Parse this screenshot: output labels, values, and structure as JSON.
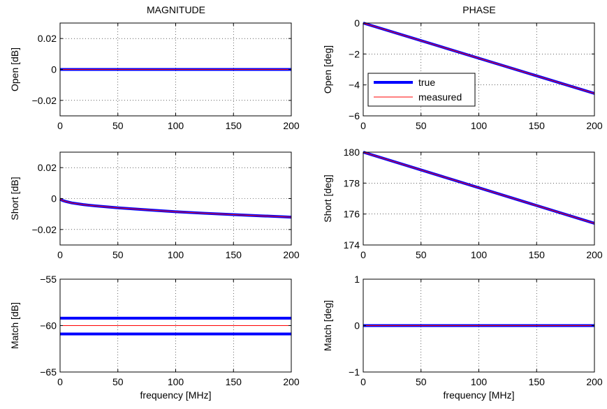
{
  "figure": {
    "col_titles": [
      "MAGNITUDE",
      "PHASE"
    ]
  },
  "chart_data": [
    {
      "type": "line",
      "ylabel": "Open [dB]",
      "xlim": [
        0,
        200
      ],
      "ylim": [
        -0.03,
        0.03
      ],
      "xticks": [
        0,
        50,
        100,
        150,
        200
      ],
      "xticklabels": [
        "0",
        "50",
        "100",
        "150",
        "200"
      ],
      "yticks": [
        -0.02,
        0,
        0.02
      ],
      "yticklabels": [
        "−0.02",
        "0",
        "0.02"
      ],
      "grid": true,
      "series": [
        {
          "name": "true",
          "color": "#0000ff",
          "width": "thick",
          "x": [
            0,
            200
          ],
          "y": [
            0,
            0
          ]
        },
        {
          "name": "measured",
          "color": "#ff0000",
          "width": "thin",
          "x": [
            0,
            200
          ],
          "y": [
            0,
            0
          ]
        }
      ]
    },
    {
      "type": "line",
      "ylabel": "Open [deg]",
      "xlim": [
        0,
        200
      ],
      "ylim": [
        -6,
        0
      ],
      "xticks": [
        0,
        50,
        100,
        150,
        200
      ],
      "xticklabels": [
        "0",
        "50",
        "100",
        "150",
        "200"
      ],
      "yticks": [
        -6,
        -4,
        -2,
        0
      ],
      "yticklabels": [
        "−6",
        "−4",
        "−2",
        "0"
      ],
      "grid": true,
      "legend": {
        "placement": "lower-left",
        "entries": [
          "true",
          "measured"
        ]
      },
      "series": [
        {
          "name": "true",
          "color": "#0000ff",
          "width": "thick",
          "x": [
            0,
            200
          ],
          "y": [
            0,
            -4.55
          ]
        },
        {
          "name": "measured",
          "color": "#ff0000",
          "width": "thin",
          "x": [
            0,
            200
          ],
          "y": [
            0,
            -4.55
          ]
        }
      ]
    },
    {
      "type": "line",
      "ylabel": "Short [dB]",
      "xlim": [
        0,
        200
      ],
      "ylim": [
        -0.03,
        0.03
      ],
      "xticks": [
        0,
        50,
        100,
        150,
        200
      ],
      "xticklabels": [
        "0",
        "50",
        "100",
        "150",
        "200"
      ],
      "yticks": [
        -0.02,
        0,
        0.02
      ],
      "yticklabels": [
        "−0.02",
        "0",
        "0.02"
      ],
      "grid": true,
      "series": [
        {
          "name": "true",
          "color": "#0000ff",
          "width": "thick",
          "x": [
            0,
            2,
            5,
            10,
            20,
            30,
            50,
            75,
            100,
            125,
            150,
            175,
            200
          ],
          "y": [
            -0.0003,
            -0.0012,
            -0.0019,
            -0.0028,
            -0.0039,
            -0.0047,
            -0.006,
            -0.0073,
            -0.0085,
            -0.0095,
            -0.0104,
            -0.0112,
            -0.012
          ]
        },
        {
          "name": "measured",
          "color": "#ff0000",
          "width": "thin",
          "x": [
            0,
            2,
            5,
            10,
            20,
            30,
            50,
            75,
            100,
            125,
            150,
            175,
            200
          ],
          "y": [
            -0.0003,
            -0.0012,
            -0.0019,
            -0.0028,
            -0.0039,
            -0.0047,
            -0.006,
            -0.0073,
            -0.0085,
            -0.0095,
            -0.0104,
            -0.0112,
            -0.012
          ]
        }
      ]
    },
    {
      "type": "line",
      "ylabel": "Short [deg]",
      "xlim": [
        0,
        200
      ],
      "ylim": [
        174,
        180
      ],
      "xticks": [
        0,
        50,
        100,
        150,
        200
      ],
      "xticklabels": [
        "0",
        "50",
        "100",
        "150",
        "200"
      ],
      "yticks": [
        174,
        176,
        178,
        180
      ],
      "yticklabels": [
        "174",
        "176",
        "178",
        "180"
      ],
      "grid": true,
      "series": [
        {
          "name": "true",
          "color": "#0000ff",
          "width": "thick",
          "x": [
            0,
            200
          ],
          "y": [
            180,
            175.4
          ]
        },
        {
          "name": "measured",
          "color": "#ff0000",
          "width": "thin",
          "x": [
            0,
            200
          ],
          "y": [
            180,
            175.4
          ]
        }
      ]
    },
    {
      "type": "line",
      "ylabel": "Match [dB]",
      "xlabel": "frequency [MHz]",
      "xlim": [
        0,
        200
      ],
      "ylim": [
        -65,
        -55
      ],
      "xticks": [
        0,
        50,
        100,
        150,
        200
      ],
      "xticklabels": [
        "0",
        "50",
        "100",
        "150",
        "200"
      ],
      "yticks": [
        -65,
        -60,
        -55
      ],
      "yticklabels": [
        "−65",
        "−60",
        "−55"
      ],
      "grid": true,
      "series": [
        {
          "name": "true",
          "color": "#0000ff",
          "width": "thick",
          "x": [
            0,
            200
          ],
          "y": [
            -59.2,
            -59.2
          ]
        },
        {
          "name": "true",
          "color": "#0000ff",
          "width": "thick",
          "x": [
            0,
            200
          ],
          "y": [
            -60.9,
            -60.9
          ]
        },
        {
          "name": "measured",
          "color": "#ff0000",
          "width": "thin",
          "x": [
            0,
            200
          ],
          "y": [
            -60,
            -60
          ]
        }
      ]
    },
    {
      "type": "line",
      "ylabel": "Match [deg]",
      "xlabel": "frequency [MHz]",
      "xlim": [
        0,
        200
      ],
      "ylim": [
        -1,
        1
      ],
      "xticks": [
        0,
        50,
        100,
        150,
        200
      ],
      "xticklabels": [
        "0",
        "50",
        "100",
        "150",
        "200"
      ],
      "yticks": [
        -1,
        0,
        1
      ],
      "yticklabels": [
        "−1",
        "0",
        "1"
      ],
      "grid": true,
      "series": [
        {
          "name": "true",
          "color": "#0000ff",
          "width": "thick",
          "x": [
            0,
            200
          ],
          "y": [
            0,
            0
          ]
        },
        {
          "name": "measured",
          "color": "#ff0000",
          "width": "thin",
          "x": [
            0,
            200
          ],
          "y": [
            0,
            0
          ]
        }
      ]
    }
  ]
}
